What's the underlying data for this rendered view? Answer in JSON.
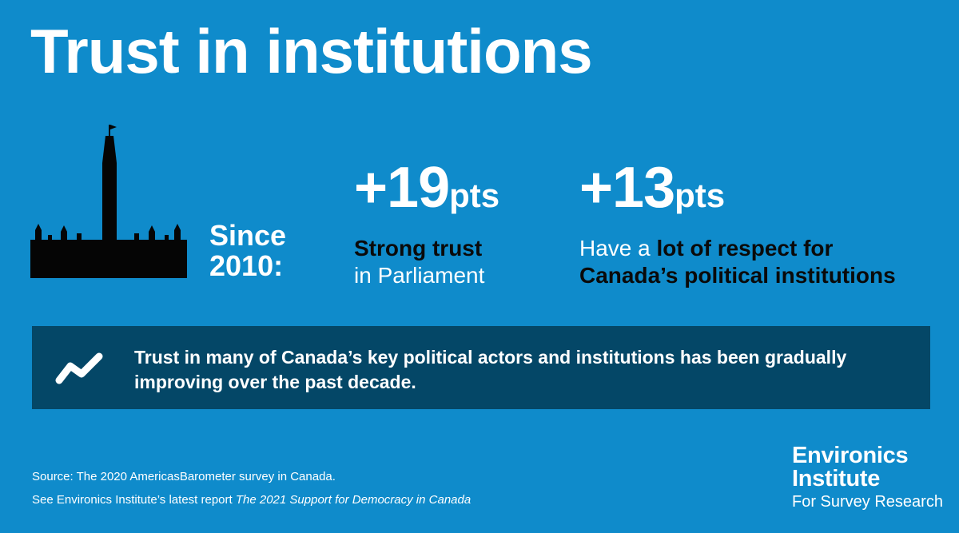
{
  "title": "Trust in institutions",
  "since": {
    "line1": "Since",
    "line2": "2010:"
  },
  "stats": [
    {
      "value": "+19",
      "unit": "pts",
      "desc_dark_1": "Strong trust",
      "desc_light_2": "in Parliament"
    },
    {
      "value": "+13",
      "unit": "pts",
      "desc_light_1": "Have a ",
      "desc_dark_1": "lot of respect for",
      "desc_dark_2": "Canada’s political institutions"
    }
  ],
  "banner": {
    "icon": "trend-up-icon",
    "text": "Trust in many of Canada’s key political actors and institutions has been gradually improving over the past decade."
  },
  "footer": {
    "source": "Source: The 2020 AmericasBarometer survey in Canada.",
    "see_prefix": "See Environics Institute’s latest report ",
    "see_title": "The 2021 Support for Democracy in Canada"
  },
  "logo": {
    "line1": "Environics",
    "line2": "Institute",
    "line3": "For Survey Research"
  },
  "colors": {
    "background": "#0f8bcb",
    "banner": "#044767",
    "emphasis": "#0a0a0a"
  }
}
